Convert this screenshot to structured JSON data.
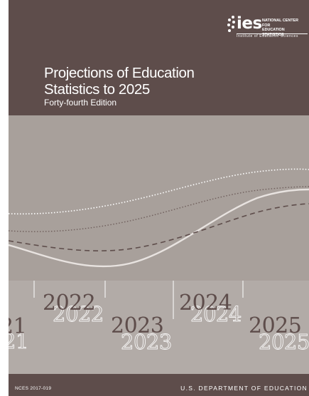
{
  "logo": {
    "word": "ies",
    "name_line1": "NATIONAL CENTER FOR",
    "name_line2": "EDUCATION STATISTICS",
    "sub": "Institute of Education Sciences",
    "dots_icon": "ies-dots-icon"
  },
  "title": {
    "line1": "Projections of Education",
    "line2": "Statistics to 2025"
  },
  "edition": "Forty-fourth Edition",
  "timeline": {
    "years": [
      "21",
      "2022",
      "2023",
      "2024",
      "2025"
    ]
  },
  "footer": {
    "report_id": "NCES 2017-019",
    "department": "U.S. DEPARTMENT OF EDUCATION"
  },
  "colors": {
    "brown": "#5e4d4b",
    "band": "#a8a09b",
    "lower_band": "#b2aba7",
    "text_light": "#ffffff"
  }
}
